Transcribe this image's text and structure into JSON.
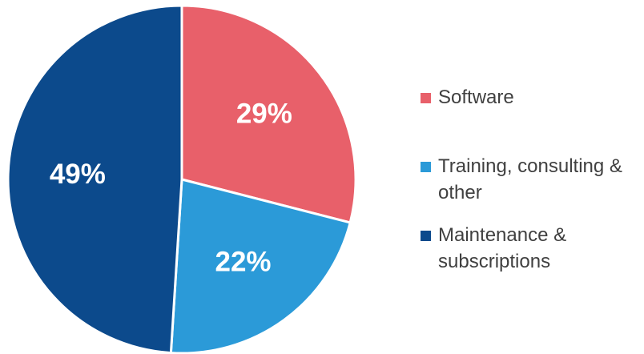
{
  "chart_data": {
    "type": "pie",
    "categories": [
      "Software",
      "Training, consulting & other",
      "Maintenance & subscriptions"
    ],
    "values": [
      29,
      22,
      49
    ],
    "value_labels": [
      "29%",
      "22%",
      "49%"
    ],
    "colors": [
      "#e8606a",
      "#2b9ad8",
      "#0c4a8c"
    ],
    "legend": "right"
  }
}
